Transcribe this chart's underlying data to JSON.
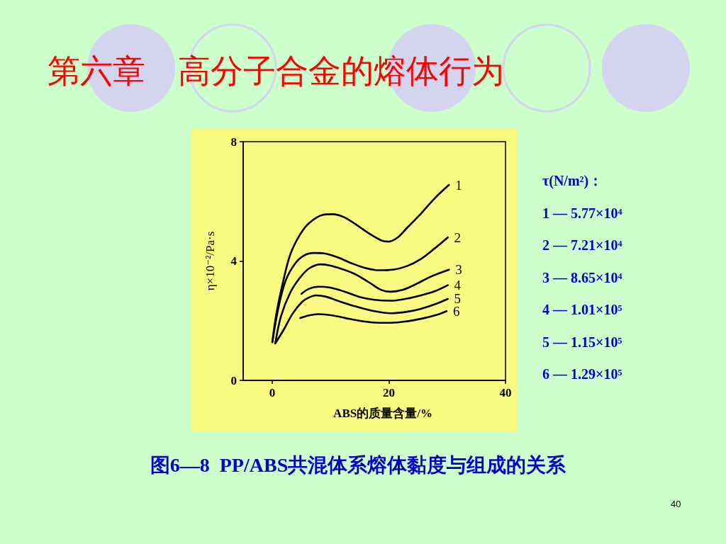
{
  "chart_data": {
    "type": "line",
    "title": "第六章　高分子合金的熔体行为",
    "xlabel": "ABS的质量含量/%",
    "ylabel": "η×10⁻²/Pa·s",
    "annotations": [
      "τ(N/m²)：",
      "1 — 5.77×10⁴",
      "2 — 7.21×10⁴",
      "3 — 8.65×10⁴",
      "4 — 1.01×10⁵",
      "5 — 1.15×10⁵",
      "6 — 1.29×10⁵",
      "图6—8  PP/ABS共混体系熔体黏度与组成的关系",
      "40"
    ],
    "xlim": [
      -5,
      40
    ],
    "xticks": [
      0,
      20,
      40
    ],
    "ylim": [
      0,
      8
    ],
    "yticks": [
      0,
      4,
      8
    ],
    "grid": false,
    "legend": false,
    "marker": "none",
    "line_style": "solid",
    "series": [
      {
        "name": "1",
        "color": "#000000",
        "x": [
          0,
          0.7,
          1.9,
          3.1,
          4.7,
          6.3,
          8.7,
          10.3,
          12.3,
          14.3,
          16.7,
          18.7,
          19.9,
          21.5,
          23.1,
          25.5,
          27.9,
          30.3
        ],
        "values": [
          1.28,
          2.24,
          3.35,
          4.23,
          4.87,
          5.27,
          5.55,
          5.57,
          5.47,
          5.23,
          4.91,
          4.69,
          4.65,
          4.79,
          5.11,
          5.59,
          6.11,
          6.55
        ]
      },
      {
        "name": "2",
        "color": "#000000",
        "x": [
          0,
          1.1,
          2.3,
          3.9,
          5.5,
          7.1,
          8.7,
          11.1,
          13.5,
          15.9,
          18.3,
          20.7,
          23.1,
          25.5,
          27.9,
          30.1
        ],
        "values": [
          1.28,
          2.48,
          3.35,
          3.91,
          4.19,
          4.27,
          4.26,
          4.13,
          3.93,
          3.77,
          3.69,
          3.71,
          3.83,
          4.07,
          4.43,
          4.79
        ]
      },
      {
        "name": "3",
        "color": "#000000",
        "x": [
          0.5,
          1.5,
          3.1,
          4.7,
          6.3,
          8.3,
          10.3,
          12.3,
          14.3,
          16.7,
          18.7,
          20.3,
          22.3,
          24.7,
          27.1,
          30.3
        ],
        "values": [
          1.24,
          2.16,
          2.95,
          3.43,
          3.75,
          3.89,
          3.83,
          3.71,
          3.55,
          3.27,
          3.03,
          2.97,
          3.03,
          3.23,
          3.47,
          3.71
        ]
      },
      {
        "name": "4",
        "color": "#000000",
        "x": [
          5,
          6.3,
          7.9,
          9.9,
          12.3,
          15.1,
          17.5,
          20.3,
          23.1,
          25.5,
          27.9,
          30.1
        ],
        "values": [
          2.9,
          3.07,
          3.14,
          3.11,
          2.98,
          2.79,
          2.7,
          2.67,
          2.74,
          2.85,
          2.99,
          3.19
        ]
      },
      {
        "name": "5",
        "color": "#000000",
        "x": [
          0.5,
          1.9,
          3.5,
          5.1,
          6.3,
          7.5,
          9.1,
          11.5,
          14.3,
          17.5,
          20.3,
          23.1,
          25.5,
          27.9,
          30.1
        ],
        "values": [
          1.24,
          1.68,
          2.24,
          2.63,
          2.78,
          2.85,
          2.81,
          2.65,
          2.48,
          2.32,
          2.25,
          2.3,
          2.4,
          2.55,
          2.73
        ]
      },
      {
        "name": "6",
        "color": "#000000",
        "x": [
          4.8,
          6.3,
          7.9,
          10.3,
          12.7,
          15.5,
          18.3,
          20.3,
          23.1,
          25.9,
          28.3,
          29.9
        ],
        "values": [
          2.09,
          2.18,
          2.22,
          2.18,
          2.08,
          1.98,
          1.93,
          1.93,
          1.98,
          2.08,
          2.2,
          2.32
        ]
      }
    ]
  }
}
